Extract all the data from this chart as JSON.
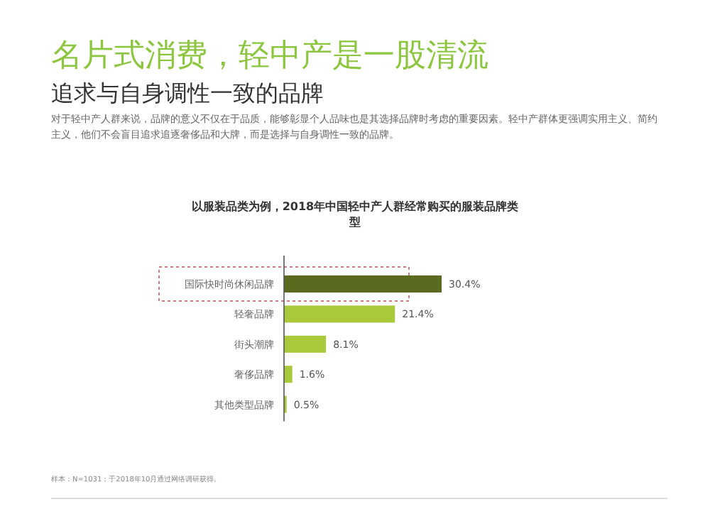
{
  "chart_data": {
    "type": "bar",
    "orientation": "horizontal",
    "title": "以服装品类为例，2018年中国轻中产人群经常购买的服装品牌类型",
    "annotations": [
      "名片式消费，轻中产是一股清流",
      "追求与自身调性一致的品牌",
      "对于轻中产人群来说，品牌的意义不仅在于品质，能够彰显个人品味也是其选择品牌时考虑的重要因素。轻中产群体更强调实用主义、简约主义，他们不会盲目追求追逐奢侈品和大牌，而是选择与自身调性一致的品牌。",
      "样本：N=1031；于2018年10月通过网络调研获得。"
    ],
    "categories": [
      "国际快时尚休闲品牌",
      "轻奢品牌",
      "街头潮牌",
      "奢侈品牌",
      "其他类型品牌"
    ],
    "values": [
      30.4,
      21.4,
      8.1,
      1.6,
      0.5
    ],
    "value_labels": [
      "30.4%",
      "21.4%",
      "8.1%",
      "1.6%",
      "0.5%"
    ],
    "colors": [
      "#5a6b1f",
      "#a9c93b",
      "#a9c93b",
      "#a9c93b",
      "#a9c93b"
    ]
  }
}
